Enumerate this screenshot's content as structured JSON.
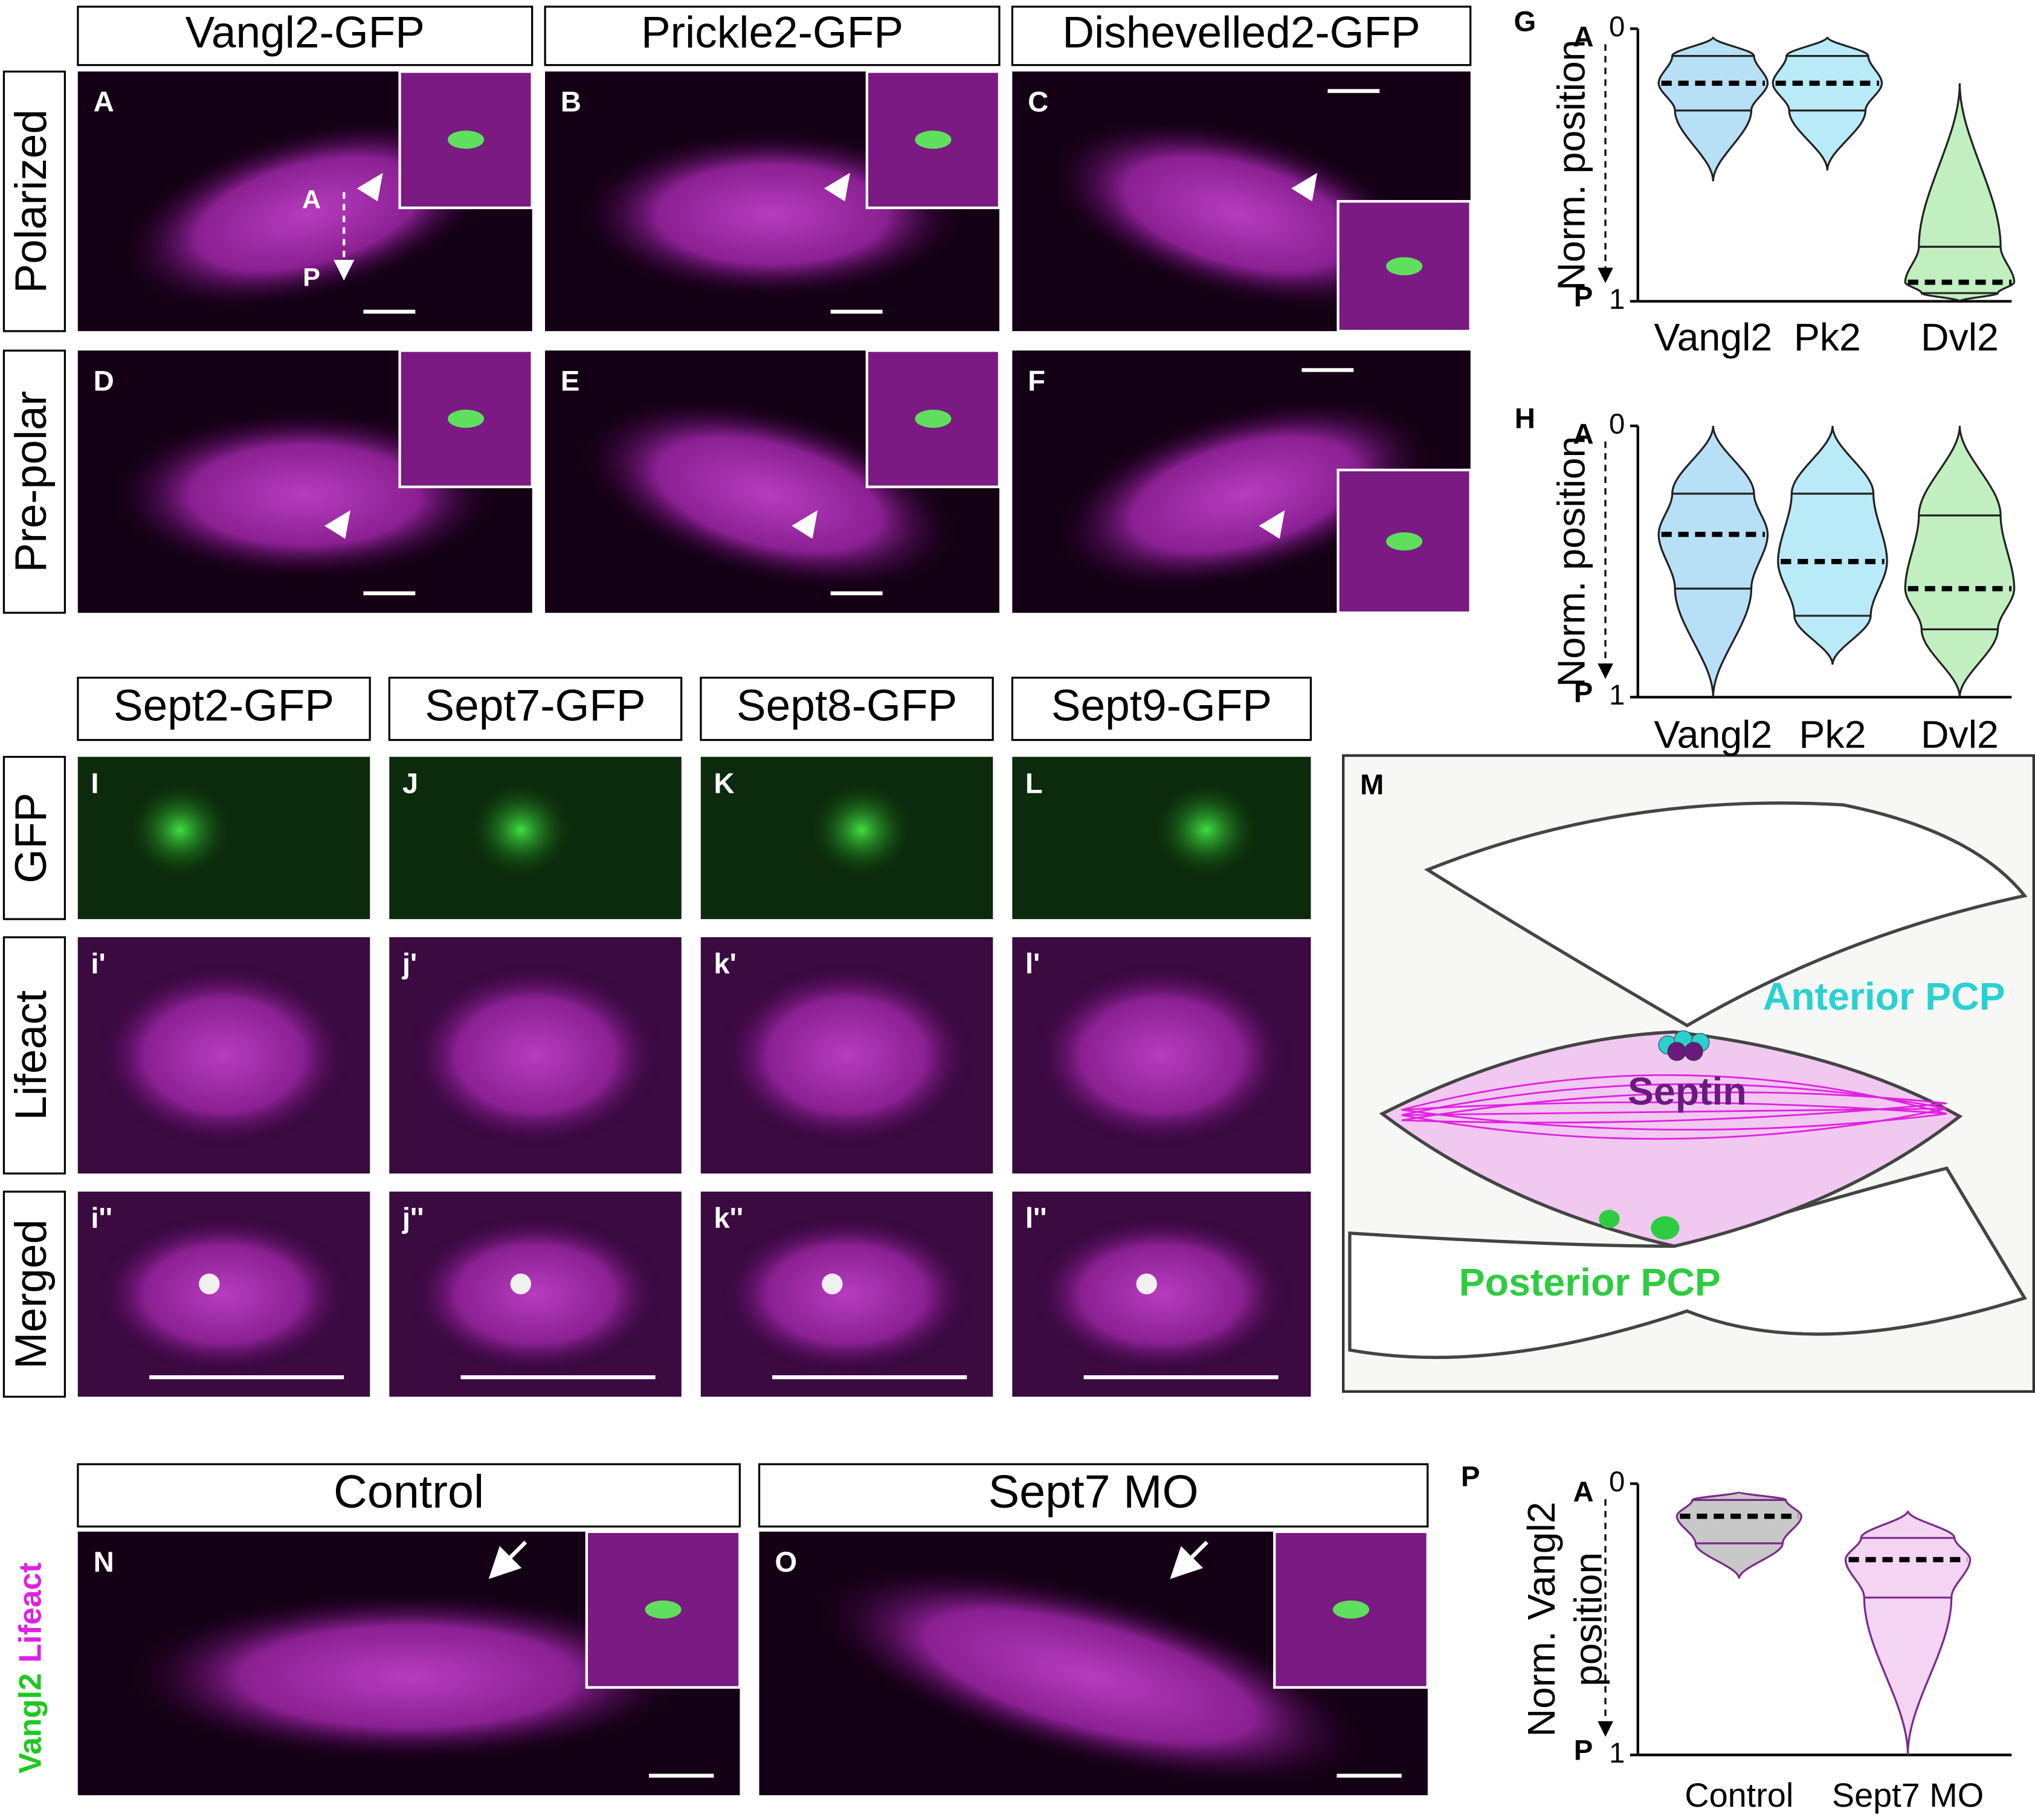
{
  "top_rows": [
    "Polarized",
    "Pre-polar"
  ],
  "top_columns": [
    "Vangl2-GFP",
    "Prickle2-GFP",
    "Dishevelled2-GFP"
  ],
  "top_letters": [
    "A",
    "B",
    "C",
    "D",
    "E",
    "F"
  ],
  "axis_arrow": [
    "A",
    "P"
  ],
  "septin_rows": [
    "GFP",
    "Lifeact",
    "Merged"
  ],
  "septin_columns": [
    "Sept2-GFP",
    "Sept7-GFP",
    "Sept8-GFP",
    "Sept9-GFP"
  ],
  "septin_letters": [
    [
      "I",
      "J",
      "K",
      "L"
    ],
    [
      "i'",
      "j'",
      "k'",
      "l'"
    ],
    [
      "i''",
      "j''",
      "k''",
      "l''"
    ]
  ],
  "diagram": {
    "letter": "M",
    "anterior": "Anterior PCP",
    "septin": "Septin",
    "posterior": "Posterior PCP"
  },
  "bottom": {
    "channels": [
      "Vangl2",
      "Lifeact"
    ],
    "columns": [
      "Control",
      "Sept7 MO"
    ],
    "letters": [
      "N",
      "O"
    ]
  },
  "chart_data": [
    {
      "type": "violin",
      "panel": "G",
      "ylabel": [
        "Norm. position"
      ],
      "y_end_labels": [
        "A",
        "P"
      ],
      "ylim": [
        0,
        1
      ],
      "yticks": [
        0,
        1
      ],
      "y_inverted": true,
      "categories": [
        "Vangl2",
        "Pk2",
        "Dvl2"
      ],
      "colors": [
        "#7cc6ee",
        "#7fd8f0",
        "#8ee28a"
      ],
      "outline": "#222",
      "stats": {
        "min": [
          0.03,
          0.03,
          0.2
        ],
        "q1": [
          0.1,
          0.1,
          0.8
        ],
        "median": [
          0.2,
          0.2,
          0.93
        ],
        "q3": [
          0.3,
          0.3,
          0.97
        ],
        "max": [
          0.56,
          0.52,
          1
        ]
      }
    },
    {
      "type": "violin",
      "panel": "H",
      "ylabel": [
        "Norm. position"
      ],
      "y_end_labels": [
        "A",
        "P"
      ],
      "ylim": [
        0,
        1
      ],
      "yticks": [
        0,
        1
      ],
      "y_inverted": true,
      "categories": [
        "Vangl2",
        "Pk2",
        "Dvl2"
      ],
      "colors": [
        "#7cc6ee",
        "#7fd8f0",
        "#8ee28a"
      ],
      "outline": "#222",
      "stats": {
        "min": [
          0,
          0,
          0
        ],
        "q1": [
          0.25,
          0.25,
          0.33
        ],
        "median": [
          0.4,
          0.5,
          0.6
        ],
        "q3": [
          0.6,
          0.7,
          0.75
        ],
        "max": [
          1,
          0.88,
          1
        ]
      }
    },
    {
      "type": "violin",
      "panel": "P",
      "ylabel": [
        "Norm. Vangl2",
        "position"
      ],
      "y_end_labels": [
        "A",
        "P"
      ],
      "ylim": [
        0,
        1
      ],
      "yticks": [
        0,
        1
      ],
      "y_inverted": true,
      "categories": [
        "Control",
        "Sept7 MO"
      ],
      "colors": [
        "#9a9a9a",
        "#eab0ea"
      ],
      "outline": "#7a2a8a",
      "stats": {
        "min": [
          0.03,
          0.1
        ],
        "q1": [
          0.06,
          0.2
        ],
        "median": [
          0.12,
          0.28
        ],
        "q3": [
          0.22,
          0.42
        ],
        "max": [
          0.35,
          1
        ]
      }
    }
  ]
}
